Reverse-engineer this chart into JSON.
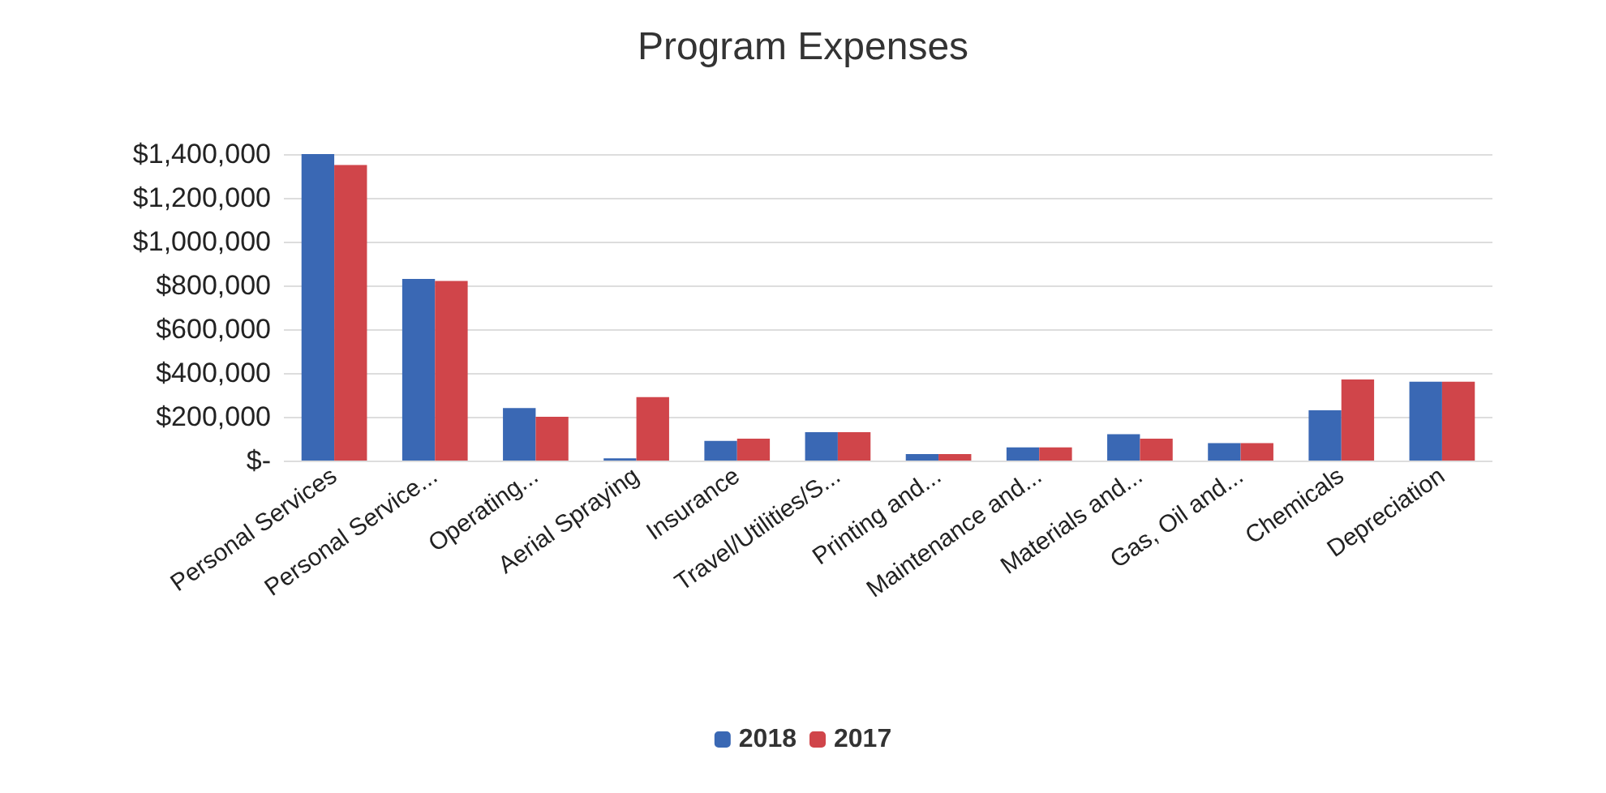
{
  "chart_data": {
    "type": "bar",
    "title": "Program Expenses",
    "categories": [
      "Personal Services",
      "Personal Service...",
      "Operating...",
      "Aerial Spraying",
      "Insurance",
      "Travel/Utilities/S...",
      "Printing and...",
      "Maintenance and...",
      "Materials and...",
      "Gas, Oil and...",
      "Chemicals",
      "Depreciation"
    ],
    "series": [
      {
        "name": "2018",
        "color": "#3a68b4",
        "values": [
          1400000,
          830000,
          240000,
          10000,
          90000,
          130000,
          30000,
          60000,
          120000,
          80000,
          230000,
          360000
        ]
      },
      {
        "name": "2017",
        "color": "#d0454a",
        "values": [
          1350000,
          820000,
          200000,
          290000,
          100000,
          130000,
          30000,
          60000,
          100000,
          80000,
          370000,
          360000
        ]
      }
    ],
    "ylim": [
      0,
      1400000
    ],
    "yticks": [
      {
        "value": 0,
        "label": "$-"
      },
      {
        "value": 200000,
        "label": "$200,000"
      },
      {
        "value": 400000,
        "label": "$400,000"
      },
      {
        "value": 600000,
        "label": "$600,000"
      },
      {
        "value": 800000,
        "label": "$800,000"
      },
      {
        "value": 1000000,
        "label": "$1,000,000"
      },
      {
        "value": 1200000,
        "label": "$1,200,000"
      },
      {
        "value": 1400000,
        "label": "$1,400,000"
      }
    ],
    "grid": "y",
    "legend": "bottom"
  }
}
